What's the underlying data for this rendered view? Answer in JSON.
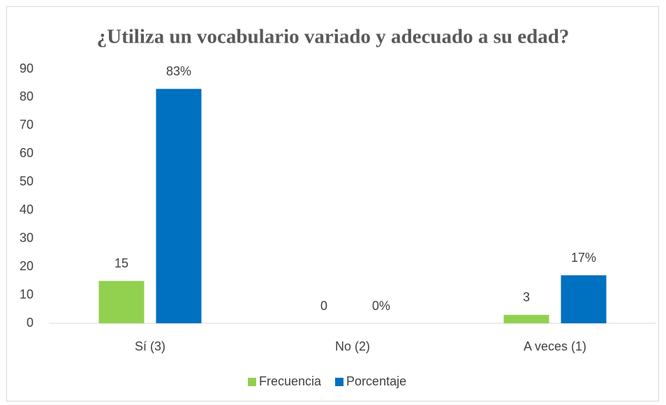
{
  "chart_data": {
    "type": "bar",
    "title": "¿Utiliza un vocabulario variado y adecuado a su edad?",
    "categories": [
      "Sí (3)",
      "No (2)",
      "A veces (1)"
    ],
    "series": [
      {
        "name": "Frecuencia",
        "color": "#92d050",
        "values": [
          15,
          0,
          3
        ]
      },
      {
        "name": "Porcentaje",
        "color": "#0070c0",
        "values": [
          83,
          0,
          17
        ],
        "value_labels": [
          "83%",
          "0%",
          "17%"
        ]
      }
    ],
    "ylim": [
      0,
      90
    ],
    "yticks": [
      0,
      10,
      20,
      30,
      40,
      50,
      60,
      70,
      80,
      90
    ],
    "grid": false,
    "legend": "bottom"
  }
}
